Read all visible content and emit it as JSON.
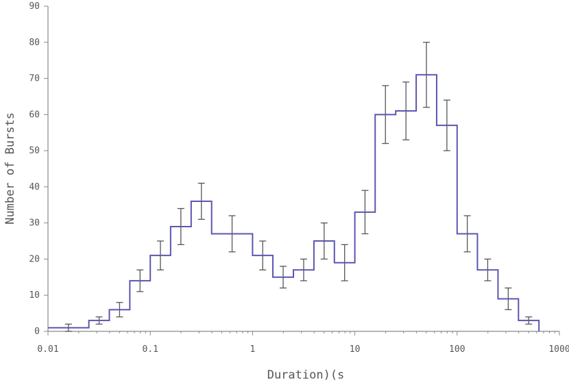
{
  "chart_data": {
    "type": "histogram",
    "xlabel": "Duration)(s",
    "ylabel": "Number of Bursts",
    "x_scale": "log",
    "xlim": [
      0.01,
      1000
    ],
    "ylim": [
      0,
      90
    ],
    "x_ticks": [
      0.01,
      0.1,
      1,
      10,
      100,
      1000
    ],
    "x_tick_labels": [
      "0.01",
      "0.1",
      "1",
      "10",
      "100",
      "1000"
    ],
    "y_ticks": [
      0,
      10,
      20,
      30,
      40,
      50,
      60,
      70,
      80,
      90
    ],
    "y_tick_labels": [
      "0",
      "10",
      "20",
      "30",
      "40",
      "50",
      "60",
      "70",
      "80",
      "90"
    ],
    "grid": false,
    "legend": "none",
    "line_color": "#5a55b0",
    "errorbar_color": "#555555",
    "bins": [
      {
        "x0": 0.01,
        "x1": 0.0251,
        "count": 1,
        "err": 1
      },
      {
        "x0": 0.0251,
        "x1": 0.0398,
        "count": 3,
        "err": 1
      },
      {
        "x0": 0.0398,
        "x1": 0.0631,
        "count": 6,
        "err": 2
      },
      {
        "x0": 0.0631,
        "x1": 0.1,
        "count": 14,
        "err": 3
      },
      {
        "x0": 0.1,
        "x1": 0.158,
        "count": 21,
        "err": 4
      },
      {
        "x0": 0.158,
        "x1": 0.251,
        "count": 29,
        "err": 5
      },
      {
        "x0": 0.251,
        "x1": 0.398,
        "count": 36,
        "err": 5
      },
      {
        "x0": 0.398,
        "x1": 1.0,
        "count": 27,
        "err": 5
      },
      {
        "x0": 1.0,
        "x1": 1.58,
        "count": 21,
        "err": 4
      },
      {
        "x0": 1.58,
        "x1": 2.51,
        "count": 15,
        "err": 3
      },
      {
        "x0": 2.51,
        "x1": 3.98,
        "count": 17,
        "err": 3
      },
      {
        "x0": 3.98,
        "x1": 6.31,
        "count": 25,
        "err": 5
      },
      {
        "x0": 6.31,
        "x1": 10.0,
        "count": 19,
        "err": 5
      },
      {
        "x0": 10.0,
        "x1": 15.8,
        "count": 33,
        "err": 6
      },
      {
        "x0": 15.8,
        "x1": 25.1,
        "count": 60,
        "err": 8
      },
      {
        "x0": 25.1,
        "x1": 39.8,
        "count": 61,
        "err": 8
      },
      {
        "x0": 39.8,
        "x1": 63.1,
        "count": 71,
        "err": 9
      },
      {
        "x0": 63.1,
        "x1": 100,
        "count": 57,
        "err": 7
      },
      {
        "x0": 100,
        "x1": 158,
        "count": 27,
        "err": 5
      },
      {
        "x0": 158,
        "x1": 251,
        "count": 17,
        "err": 3
      },
      {
        "x0": 251,
        "x1": 398,
        "count": 9,
        "err": 3
      },
      {
        "x0": 398,
        "x1": 631,
        "count": 3,
        "err": 1
      }
    ]
  }
}
